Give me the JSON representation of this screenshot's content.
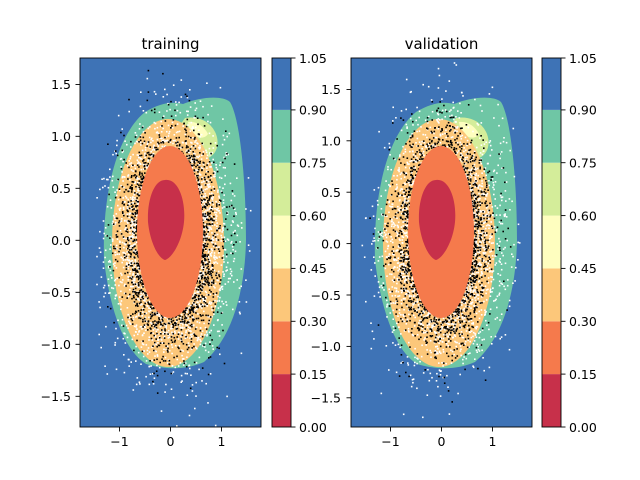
{
  "chart_data": [
    {
      "type": "heatmap",
      "title": "training",
      "x_ticks": [
        "−1",
        "0",
        "1"
      ],
      "x_tick_values": [
        -1,
        0,
        1
      ],
      "y_ticks": [
        "−1.5",
        "−1.0",
        "−0.5",
        "0.0",
        "0.5",
        "1.0",
        "1.5"
      ],
      "y_tick_values": [
        -1.5,
        -1.0,
        -0.5,
        0.0,
        0.5,
        1.0,
        1.5
      ],
      "xlim": [
        -1.75,
        1.75
      ],
      "ylim": [
        -1.8,
        1.75
      ],
      "contour_levels": [
        0.0,
        0.15,
        0.3,
        0.45,
        0.6,
        0.75,
        0.9,
        1.05
      ],
      "colorbar_ticks": [
        "0.00",
        "0.15",
        "0.30",
        "0.45",
        "0.60",
        "0.75",
        "0.90",
        "1.05"
      ],
      "colormap": [
        "#c7304a",
        "#f57a4c",
        "#fcc77a",
        "#fefebf",
        "#d4ed9a",
        "#6fc6a5",
        "#3e73b6"
      ],
      "scatter_series": [
        {
          "color": "#ffffff",
          "count": 4200,
          "sx": 0.52,
          "sy": 0.52,
          "cy": 0.0
        },
        {
          "color": "#000000",
          "count": 5200,
          "sx": 0.38,
          "sy": 0.42,
          "cy": 0.02
        }
      ]
    },
    {
      "type": "heatmap",
      "title": "validation",
      "x_ticks": [
        "−1",
        "0",
        "1"
      ],
      "x_tick_values": [
        -1,
        0,
        1
      ],
      "y_ticks": [
        "−1.5",
        "−1.0",
        "−0.5",
        "0.0",
        "0.5",
        "1.0",
        "1.5"
      ],
      "y_tick_values": [
        -1.5,
        -1.0,
        -0.5,
        0.0,
        0.5,
        1.0,
        1.5
      ],
      "xlim": [
        -1.75,
        1.75
      ],
      "ylim": [
        -1.8,
        1.75
      ],
      "contour_levels": [
        0.0,
        0.15,
        0.3,
        0.45,
        0.6,
        0.75,
        0.9,
        1.05
      ],
      "colorbar_ticks": [
        "0.00",
        "0.15",
        "0.30",
        "0.45",
        "0.60",
        "0.75",
        "0.90",
        "1.05"
      ],
      "colormap": [
        "#c7304a",
        "#f57a4c",
        "#fcc77a",
        "#fefebf",
        "#d4ed9a",
        "#6fc6a5",
        "#3e73b6"
      ],
      "scatter_series": [
        {
          "color": "#ffffff",
          "count": 4200,
          "sx": 0.52,
          "sy": 0.52,
          "cy": 0.0
        },
        {
          "color": "#000000",
          "count": 5200,
          "sx": 0.38,
          "sy": 0.42,
          "cy": 0.02
        }
      ]
    }
  ]
}
